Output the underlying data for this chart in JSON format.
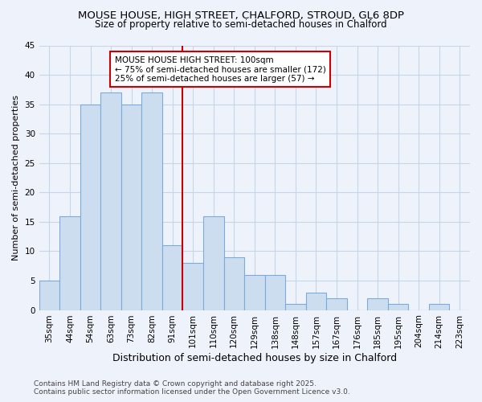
{
  "title1": "MOUSE HOUSE, HIGH STREET, CHALFORD, STROUD, GL6 8DP",
  "title2": "Size of property relative to semi-detached houses in Chalford",
  "xlabel": "Distribution of semi-detached houses by size in Chalford",
  "ylabel": "Number of semi-detached properties",
  "categories": [
    "35sqm",
    "44sqm",
    "54sqm",
    "63sqm",
    "73sqm",
    "82sqm",
    "91sqm",
    "101sqm",
    "110sqm",
    "120sqm",
    "129sqm",
    "138sqm",
    "148sqm",
    "157sqm",
    "167sqm",
    "176sqm",
    "185sqm",
    "195sqm",
    "204sqm",
    "214sqm",
    "223sqm"
  ],
  "values": [
    5,
    16,
    35,
    37,
    35,
    37,
    11,
    8,
    16,
    9,
    6,
    6,
    1,
    3,
    2,
    0,
    2,
    1,
    0,
    1,
    0
  ],
  "bar_color": "#ccddf0",
  "bar_edge_color": "#7aabdb",
  "vline_color": "#cc0000",
  "annotation_title": "MOUSE HOUSE HIGH STREET: 100sqm",
  "annotation_line1": "← 75% of semi-detached houses are smaller (172)",
  "annotation_line2": "25% of semi-detached houses are larger (57) →",
  "annotation_box_color": "#ffffff",
  "annotation_box_edge": "#cc0000",
  "footer1": "Contains HM Land Registry data © Crown copyright and database right 2025.",
  "footer2": "Contains public sector information licensed under the Open Government Licence v3.0.",
  "ylim": [
    0,
    45
  ],
  "yticks": [
    0,
    5,
    10,
    15,
    20,
    25,
    30,
    35,
    40,
    45
  ],
  "bg_color": "#eef3fb",
  "plot_bg_color": "#eef3fb",
  "grid_color": "#c8d4e8",
  "title1_fontsize": 9.5,
  "title2_fontsize": 8.5,
  "xlabel_fontsize": 9,
  "ylabel_fontsize": 8,
  "tick_fontsize": 7.5,
  "footer_fontsize": 6.5
}
